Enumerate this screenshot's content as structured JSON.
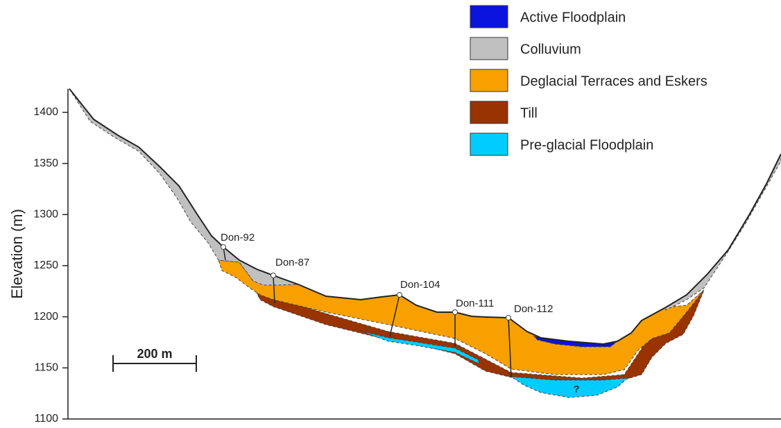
{
  "axis": {
    "label": "Elevation (m)",
    "ylim": [
      1100,
      1420
    ],
    "yticks": [
      1100,
      1150,
      1200,
      1250,
      1300,
      1350,
      1400
    ]
  },
  "legend": [
    {
      "label": "Active Floodplain",
      "color": "#0a14dc"
    },
    {
      "label": "Colluvium",
      "color": "#c0c0c0"
    },
    {
      "label": "Deglacial Terraces and Eskers",
      "color": "#f7a000"
    },
    {
      "label": "Till",
      "color": "#993300"
    },
    {
      "label": "Pre-glacial Floodplain",
      "color": "#00ccff"
    }
  ],
  "boreholes": [
    {
      "label": "Don-92"
    },
    {
      "label": "Don-87"
    },
    {
      "label": "Don-104"
    },
    {
      "label": "Don-111"
    },
    {
      "label": "Don-112"
    }
  ],
  "scale_bar": "200 m",
  "annotation": "?"
}
